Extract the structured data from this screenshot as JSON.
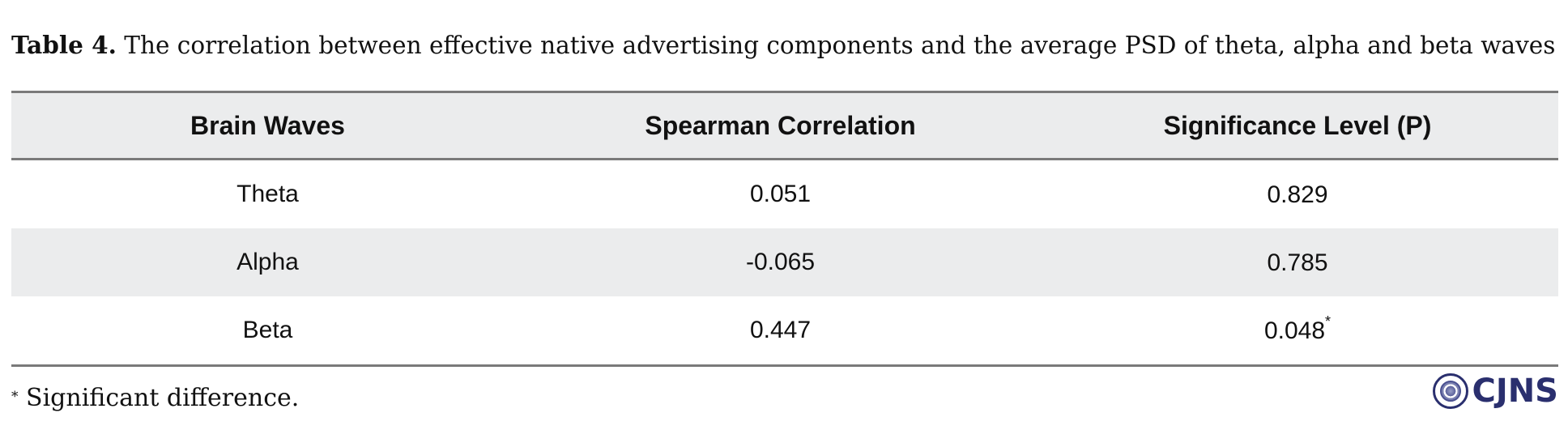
{
  "caption": {
    "label": "Table 4.",
    "text": " The correlation between effective native advertising components and the average PSD of theta, alpha and beta waves"
  },
  "table": {
    "headers": [
      "Brain Waves",
      "Spearman Correlation",
      "Significance Level (P)"
    ],
    "rows": [
      {
        "wave": "Theta",
        "correlation": "0.051",
        "p": "0.829",
        "mark": ""
      },
      {
        "wave": "Alpha",
        "correlation": "-0.065",
        "p": "0.785",
        "mark": ""
      },
      {
        "wave": "Beta",
        "correlation": "0.447",
        "p": "0.048",
        "mark": "*"
      }
    ]
  },
  "footnote": {
    "mark": "*",
    "text": " Significant difference."
  },
  "logo": {
    "text": "CJNS",
    "color": "#2a2f6e"
  }
}
